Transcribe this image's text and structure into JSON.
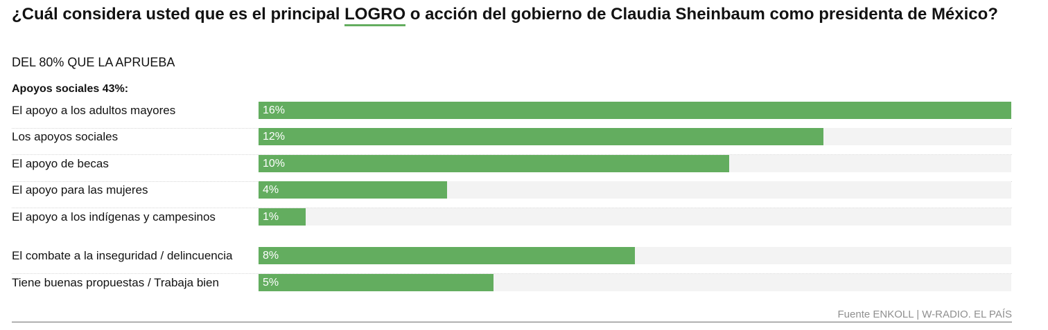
{
  "title": {
    "before": "¿Cuál considera usted que es el principal ",
    "highlight": "LOGRO",
    "after": " o acción del gobierno de Claudia Sheinbaum como presidenta de México?"
  },
  "subtitle": "DEL 80% QUE LA APRUEBA",
  "group_label": "Apoyos sociales 43%:",
  "source": "Fuente ENKOLL | W-RADIO. EL PAÍS",
  "colors": {
    "bar": "#63ad5f",
    "track": "#f3f3f3",
    "text": "#121212",
    "source": "#8f8f8f"
  },
  "chart_data": {
    "type": "bar",
    "orientation": "horizontal",
    "title": "¿Cuál considera usted que es el principal LOGRO o acción del gobierno de Claudia Sheinbaum como presidenta de México?",
    "subtitle": "DEL 80% QUE LA APRUEBA",
    "categories": [
      "El apoyo a los adultos mayores",
      "Los apoyos sociales",
      "El apoyo de becas",
      "El apoyo para las mujeres",
      "El apoyo a los indígenas y campesinos",
      "El combate a la inseguridad / delincuencia",
      "Tiene buenas propuestas / Trabaja bien"
    ],
    "values": [
      16,
      12,
      10,
      4,
      1,
      8,
      5
    ],
    "value_labels": [
      "16%",
      "12%",
      "10%",
      "4%",
      "1%",
      "8%",
      "5%"
    ],
    "xlim": [
      0,
      16
    ],
    "grid": false,
    "legend": "none"
  }
}
